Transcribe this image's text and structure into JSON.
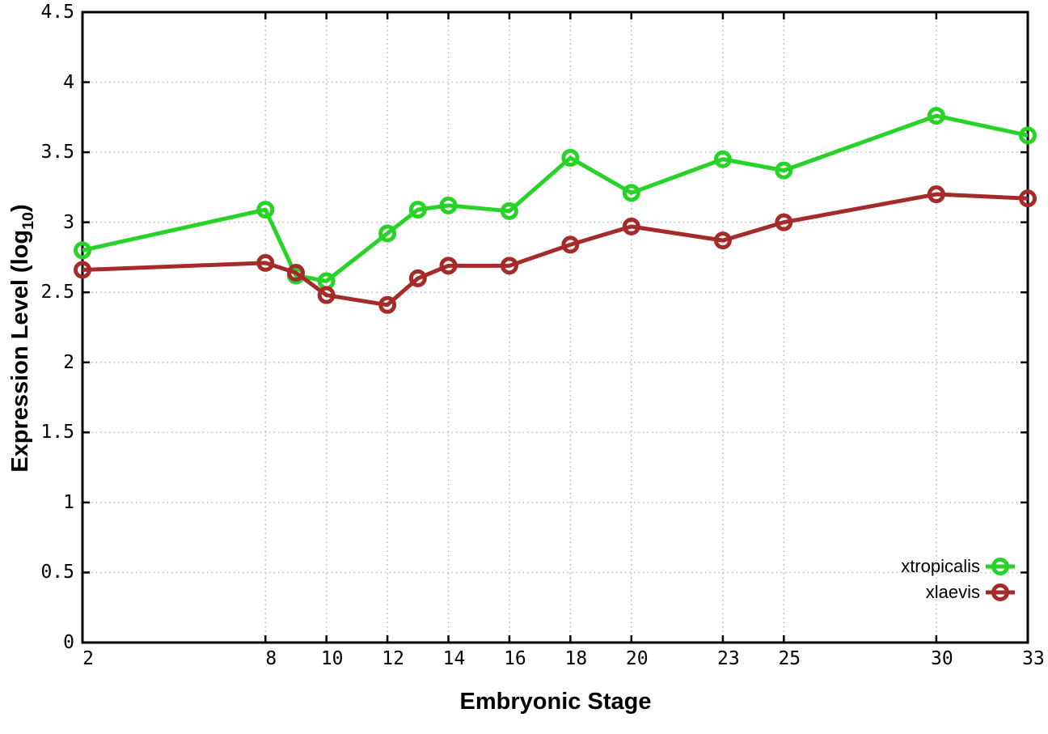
{
  "chart_data": {
    "type": "line",
    "title": "",
    "xlabel": "Embryonic Stage",
    "ylabel": "Expression Level (log10)",
    "ylabel_parts": {
      "pre": "Expression Level (log",
      "sub": "10",
      "post": ")"
    },
    "xlim": [
      2,
      33
    ],
    "ylim": [
      0,
      4.5
    ],
    "x_tick_labels": [
      "2",
      "8",
      "10",
      "12",
      "14",
      "16",
      "18",
      "20",
      "23",
      "25",
      "30",
      "33"
    ],
    "y_tick_labels": [
      "0",
      "0.5",
      "1",
      "1.5",
      "2",
      "2.5",
      "3",
      "3.5",
      "4",
      "4.5"
    ],
    "grid": "dotted, at every labeled tick, both axes",
    "legend_position": "inside bottom-right, no border",
    "marker": "open-circle",
    "x": [
      2,
      8,
      9,
      10,
      12,
      13,
      14,
      16,
      18,
      20,
      23,
      25,
      30,
      33
    ],
    "series": [
      {
        "name": "xtropicalis",
        "color": "#26d326",
        "values": [
          2.8,
          3.09,
          2.62,
          2.58,
          2.92,
          3.09,
          3.12,
          3.08,
          3.46,
          3.21,
          3.45,
          3.37,
          3.76,
          3.62
        ]
      },
      {
        "name": "xlaevis",
        "color": "#a52a2a",
        "values": [
          2.66,
          2.71,
          2.64,
          2.48,
          2.41,
          2.6,
          2.69,
          2.69,
          2.84,
          2.97,
          2.87,
          3.0,
          3.2,
          3.17
        ]
      }
    ],
    "colors": {
      "grid": "#b8b8b8",
      "border": "#000000",
      "text": "#000000"
    }
  }
}
